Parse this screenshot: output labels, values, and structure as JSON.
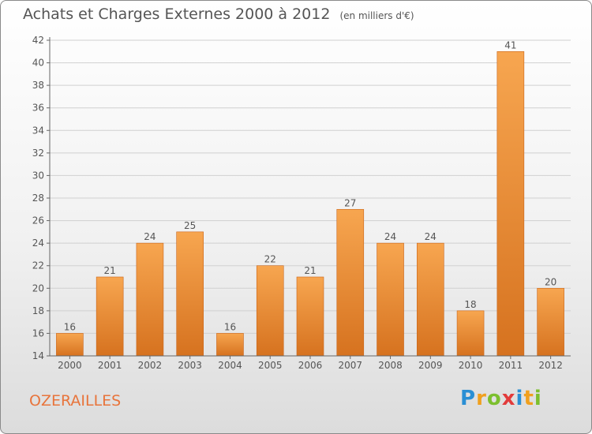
{
  "title": "Achats et Charges Externes 2000 à 2012",
  "unit": "(en milliers d'€)",
  "commune": "OZERAILLES",
  "logo": {
    "letters": [
      "P",
      "r",
      "o",
      "x",
      "i",
      "t",
      "i"
    ],
    "colors": [
      "#2a8fd4",
      "#f0a01e",
      "#7cbf2e",
      "#e23b3b",
      "#2a8fd4",
      "#f0a01e",
      "#7cbf2e"
    ]
  },
  "colors": {
    "bar_top": "#f7a650",
    "bar_bottom": "#d6721f",
    "bar_edge": "#c9651b",
    "grid": "#d0d0d0",
    "text": "#555555"
  },
  "chart_data": {
    "type": "bar",
    "categories": [
      "2000",
      "2001",
      "2002",
      "2003",
      "2004",
      "2005",
      "2006",
      "2007",
      "2008",
      "2009",
      "2010",
      "2011",
      "2012"
    ],
    "values": [
      16,
      21,
      24,
      25,
      16,
      22,
      21,
      27,
      24,
      24,
      18,
      41,
      20
    ],
    "ylim": [
      14,
      42
    ],
    "yticks": [
      14,
      16,
      18,
      20,
      22,
      24,
      26,
      28,
      30,
      32,
      34,
      36,
      38,
      40,
      42
    ],
    "grid": true,
    "data_labels": true
  }
}
